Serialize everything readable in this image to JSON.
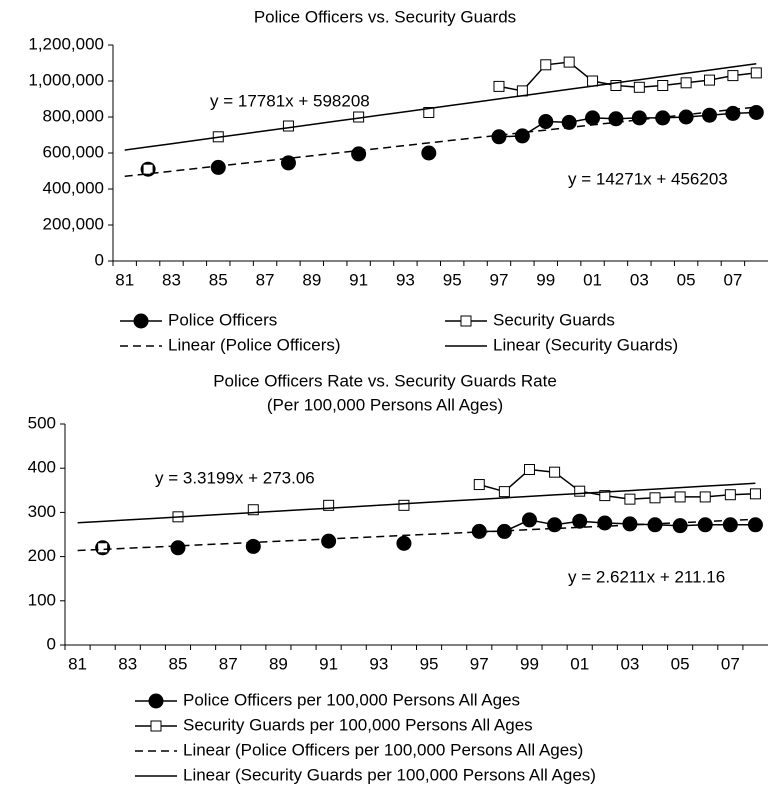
{
  "chart_data": [
    {
      "type": "line",
      "title": "Police Officers vs. Security Guards",
      "categories": [
        "81",
        null,
        "83",
        null,
        "85",
        null,
        "87",
        null,
        "89",
        null,
        "91",
        null,
        "93",
        null,
        "95",
        null,
        "97",
        null,
        "99",
        null,
        "01",
        null,
        "03",
        null,
        "05",
        null,
        "07",
        null
      ],
      "ylim": [
        0,
        1200000
      ],
      "yticks": [
        0,
        {
          "value": 200000,
          "label": "200,000"
        },
        {
          "value": 400000,
          "label": "400,000"
        },
        {
          "value": 600000,
          "label": "600,000"
        },
        {
          "value": 800000,
          "label": "800,000"
        },
        {
          "value": 1000000,
          "label": "1,000,000"
        },
        {
          "value": 1200000,
          "label": "1,200,000"
        }
      ],
      "legend_columns": 2,
      "series": [
        {
          "name": "Police Officers",
          "color": "#000000",
          "marker": "circle",
          "line_style": "solid",
          "values": [
            null,
            510000,
            null,
            null,
            520000,
            null,
            null,
            545000,
            null,
            null,
            595000,
            null,
            null,
            600000,
            null,
            null,
            690000,
            695000,
            775000,
            770000,
            795000,
            790000,
            795000,
            795000,
            800000,
            810000,
            820000,
            825000
          ]
        },
        {
          "name": "Security Guards",
          "color": "#000000",
          "marker": "square",
          "line_style": "solid",
          "values": [
            null,
            510000,
            null,
            null,
            690000,
            null,
            null,
            750000,
            null,
            null,
            800000,
            null,
            null,
            825000,
            null,
            null,
            970000,
            945000,
            1090000,
            1105000,
            1000000,
            975000,
            965000,
            975000,
            990000,
            1005000,
            1030000,
            1045000
          ]
        },
        {
          "name": "Linear (Police Officers)",
          "color": "#000000",
          "marker": "none",
          "line_style": "dashed",
          "values": [
            470500,
            484700,
            499000,
            513300,
            527600,
            541800,
            556100,
            570400,
            584600,
            598900,
            613200,
            627500,
            641700,
            656000,
            670300,
            684500,
            698800,
            713100,
            727400,
            741600,
            755900,
            770200,
            784400,
            798700,
            813000,
            827300,
            841500,
            855800
          ]
        },
        {
          "name": "Linear (Security Guards)",
          "color": "#000000",
          "marker": "none",
          "line_style": "solid",
          "values": [
            616000,
            633800,
            651600,
            669300,
            687100,
            704900,
            722700,
            740500,
            758200,
            776000,
            793800,
            811600,
            829400,
            847100,
            864900,
            882700,
            900500,
            918300,
            936000,
            953800,
            971600,
            989400,
            1007200,
            1024900,
            1042700,
            1060500,
            1078300,
            1096100
          ]
        }
      ],
      "annotations": [
        "y = 17781x + 598208",
        "y = 14271x + 456203"
      ]
    },
    {
      "type": "line",
      "title": "Police Officers Rate vs. Security Guards Rate",
      "subtitle": "(Per 100,000 Persons All Ages)",
      "categories": [
        "81",
        null,
        "83",
        null,
        "85",
        null,
        "87",
        null,
        "89",
        null,
        "91",
        null,
        "93",
        null,
        "95",
        null,
        "97",
        null,
        "99",
        null,
        "01",
        null,
        "03",
        null,
        "05",
        null,
        "07",
        null
      ],
      "ylim": [
        0,
        500
      ],
      "yticks": [
        0,
        100,
        200,
        300,
        400,
        500
      ],
      "legend_columns": 1,
      "series": [
        {
          "name": "Police Officers per 100,000 Persons All Ages",
          "color": "#000000",
          "marker": "circle",
          "line_style": "solid",
          "values": [
            null,
            220,
            null,
            null,
            220,
            null,
            null,
            223,
            null,
            null,
            235,
            null,
            null,
            230,
            null,
            null,
            257,
            257,
            283,
            272,
            280,
            276,
            274,
            272,
            270,
            272,
            272,
            272
          ]
        },
        {
          "name": "Security Guards per 100,000 Persons All Ages",
          "color": "#000000",
          "marker": "square",
          "line_style": "solid",
          "values": [
            null,
            220,
            null,
            null,
            290,
            null,
            null,
            306,
            null,
            null,
            316,
            null,
            null,
            316,
            null,
            null,
            363,
            347,
            397,
            391,
            348,
            338,
            330,
            333,
            335,
            335,
            340,
            342
          ]
        },
        {
          "name": "Linear (Police Officers per 100,000 Persons All Ages)",
          "color": "#000000",
          "marker": "none",
          "line_style": "dashed",
          "values": [
            213.8,
            216.4,
            219.0,
            221.6,
            224.3,
            226.9,
            229.5,
            232.1,
            234.8,
            237.4,
            240.0,
            242.6,
            245.2,
            247.9,
            250.5,
            253.1,
            255.7,
            258.3,
            261.0,
            263.6,
            266.2,
            268.8,
            271.4,
            274.1,
            276.7,
            279.3,
            281.9,
            284.5
          ]
        },
        {
          "name": "Linear (Security Guards per 100,000 Persons All Ages)",
          "color": "#000000",
          "marker": "none",
          "line_style": "solid",
          "values": [
            276.4,
            279.7,
            283.0,
            286.3,
            289.7,
            293.0,
            296.3,
            299.6,
            302.9,
            306.3,
            309.6,
            312.9,
            316.2,
            319.5,
            322.9,
            326.2,
            329.5,
            332.8,
            336.1,
            339.5,
            342.8,
            346.1,
            349.4,
            352.7,
            356.1,
            359.4,
            362.7,
            366.0
          ]
        }
      ],
      "annotations": [
        "y = 3.3199x + 273.06",
        "y = 2.6211x + 211.16"
      ]
    }
  ]
}
